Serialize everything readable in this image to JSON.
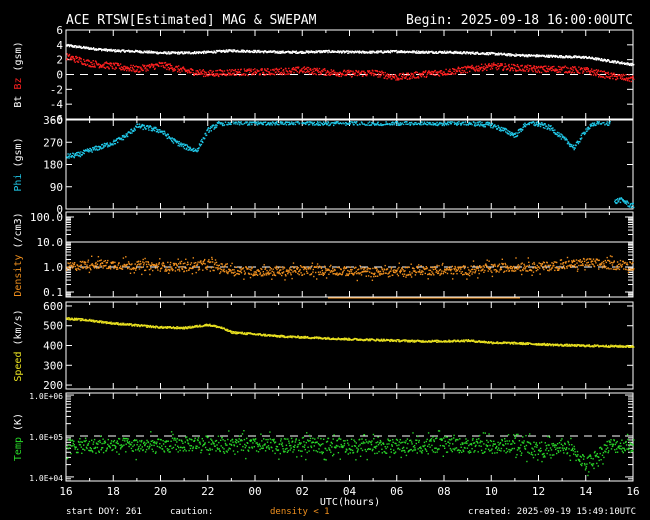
{
  "header": {
    "title": "ACE RTSW[Estimated] MAG & SWEPAM",
    "begin": "Begin: 2025-09-18 16:00:00UTC"
  },
  "footer": {
    "start_doy": "start DOY: 261",
    "caution_label": "caution:",
    "caution_text": "density < 1",
    "created": "created: 2025-09-19 15:49:10UTC"
  },
  "colors": {
    "background": "#000000",
    "frame": "#ffffff",
    "bt": "#ffffff",
    "bz": "#ff2020",
    "phi": "#20c8e8",
    "density": "#f0901e",
    "speed": "#e8e020",
    "temp": "#28d828",
    "caution": "#f0901e"
  },
  "chart_data": {
    "type": "multi-panel time series",
    "x": {
      "label": "UTC(hours)",
      "ticks": [
        "16",
        "18",
        "20",
        "22",
        "00",
        "02",
        "04",
        "06",
        "08",
        "10",
        "12",
        "14",
        "16"
      ],
      "range_hours": [
        0,
        24
      ]
    },
    "panels": [
      {
        "id": "mag",
        "ylabel_parts": [
          "Bt",
          "Bz",
          "(gsm)"
        ],
        "yticks": [
          "6",
          "4",
          "2",
          "0",
          "-2",
          "-4",
          "-6"
        ],
        "ylim": [
          -6,
          6
        ],
        "reference_line": 0,
        "series": [
          {
            "name": "Bt",
            "color": "#ffffff",
            "t": [
              0,
              1,
              2,
              3,
              4,
              5,
              6,
              7,
              8,
              9,
              10,
              11,
              12,
              13,
              14,
              15,
              16,
              17,
              18,
              19,
              20,
              21,
              22,
              23,
              24
            ],
            "v": [
              4.0,
              3.6,
              3.3,
              3.2,
              3.0,
              3.0,
              3.1,
              3.3,
              3.2,
              3.1,
              3.1,
              3.2,
              3.1,
              3.1,
              3.2,
              3.1,
              3.1,
              3.0,
              2.9,
              2.7,
              2.6,
              2.5,
              2.4,
              1.9,
              1.4
            ]
          },
          {
            "name": "Bz",
            "color": "#ff2020",
            "t": [
              0,
              1,
              2,
              3,
              4,
              5,
              6,
              7,
              8,
              9,
              10,
              11,
              12,
              13,
              14,
              15,
              16,
              17,
              18,
              19,
              20,
              21,
              22,
              23,
              24
            ],
            "v": [
              2.5,
              1.6,
              1.2,
              0.8,
              1.4,
              0.6,
              0.2,
              0.4,
              0.4,
              0.5,
              0.7,
              0.4,
              0.2,
              0.3,
              -0.3,
              0.1,
              0.4,
              0.8,
              1.2,
              1.0,
              0.8,
              0.8,
              0.6,
              -0.1,
              -0.5
            ]
          }
        ]
      },
      {
        "id": "phi",
        "ylabel_parts": [
          "Phi",
          "(gsm)"
        ],
        "yticks": [
          "360",
          "270",
          "180",
          "90",
          "0"
        ],
        "ylim": [
          0,
          360
        ],
        "series": [
          {
            "name": "Phi",
            "color": "#20c8e8",
            "t": [
              0,
              0.5,
              1,
              1.5,
              2,
              2.5,
              3,
              3.5,
              4,
              4.5,
              5,
              5.5,
              6,
              6.5,
              7,
              7.5,
              8,
              9,
              10,
              11,
              12,
              13,
              14,
              15,
              16,
              17,
              18,
              18.5,
              19,
              19.5,
              20,
              20.5,
              21,
              21.5,
              22,
              22.5,
              23
            ],
            "v": [
              215,
              222,
              240,
              255,
              272,
              298,
              338,
              330,
              318,
              280,
              255,
              238,
              322,
              350,
              352,
              352,
              350,
              354,
              352,
              350,
              352,
              351,
              350,
              352,
              350,
              351,
              342,
              322,
              300,
              352,
              345,
              330,
              290,
              250,
              325,
              355,
              350
            ]
          },
          {
            "name": "Phi (wrapped)",
            "color": "#20c8e8",
            "t": [
              23.2,
              23.4,
              23.6,
              23.8,
              24
            ],
            "v": [
              30,
              40,
              35,
              20,
              15
            ]
          }
        ]
      },
      {
        "id": "density",
        "ylabel_parts": [
          "Density",
          "(/cm3)"
        ],
        "yticks": [
          "100.0",
          "10.0",
          "1.0",
          "0.1"
        ],
        "log_range": [
          -1.2,
          2.2
        ],
        "reference_lines": [
          10,
          1
        ],
        "series": [
          {
            "name": "Density",
            "color": "#f0901e",
            "t": [
              0,
              1,
              2,
              3,
              4,
              5,
              6,
              6.5,
              7,
              8,
              9,
              10,
              11,
              12,
              13,
              14,
              15,
              16,
              17,
              18,
              19,
              20,
              21,
              22,
              23,
              24
            ],
            "v": [
              1.0,
              1.4,
              1.3,
              1.2,
              1.1,
              1.1,
              1.3,
              1.0,
              0.8,
              0.7,
              0.7,
              0.75,
              0.8,
              0.7,
              0.65,
              0.7,
              0.8,
              0.75,
              0.8,
              0.9,
              1.1,
              1.1,
              1.2,
              1.6,
              1.3,
              1.2
            ]
          }
        ]
      },
      {
        "id": "speed",
        "ylabel_parts": [
          "Speed",
          "(km/s)"
        ],
        "yticks": [
          "600",
          "500",
          "400",
          "300",
          "200"
        ],
        "ylim": [
          180,
          620
        ],
        "series": [
          {
            "name": "Speed",
            "color": "#e8e020",
            "t": [
              0,
              1,
              2,
              3,
              4,
              5,
              6,
              6.5,
              7,
              8,
              9,
              10,
              11,
              12,
              13,
              14,
              15,
              16,
              17,
              18,
              19,
              20,
              21,
              22,
              23,
              24
            ],
            "v": [
              540,
              530,
              515,
              505,
              495,
              492,
              508,
              495,
              470,
              460,
              450,
              445,
              440,
              435,
              432,
              428,
              425,
              425,
              428,
              418,
              415,
              410,
              405,
              402,
              400,
              398
            ]
          }
        ]
      },
      {
        "id": "temp",
        "ylabel_parts": [
          "Temp",
          "(K)"
        ],
        "yticks": [
          "1.0E+06",
          "1.0E+05",
          "1.0E+04"
        ],
        "log_range": [
          3.9,
          6.05
        ],
        "reference_line": 100000,
        "series": [
          {
            "name": "Temp",
            "color": "#28d828",
            "t": [
              0,
              1,
              2,
              3,
              4,
              5,
              6,
              7,
              8,
              9,
              10,
              11,
              12,
              13,
              14,
              15,
              16,
              17,
              18,
              19,
              20,
              20.5,
              21,
              21.5,
              22,
              22.5,
              23,
              24
            ],
            "v": [
              60000,
              58000,
              62000,
              60000,
              58000,
              65000,
              70000,
              62000,
              60000,
              58000,
              60000,
              62000,
              60000,
              58000,
              58000,
              60000,
              62000,
              60000,
              58000,
              62000,
              50000,
              45000,
              60000,
              40000,
              20000,
              35000,
              60000,
              62000
            ]
          }
        ]
      }
    ]
  }
}
